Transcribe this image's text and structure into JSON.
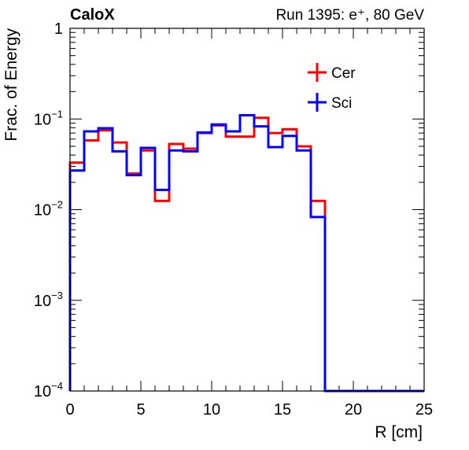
{
  "chart_data": {
    "type": "step",
    "title_left": "CaloX",
    "title_right": "Run 1395: e⁺, 80 GeV",
    "xlabel": "R [cm]",
    "ylabel": "Frac. of Energy",
    "xlim": [
      0,
      25
    ],
    "ylim": [
      0.0001,
      1
    ],
    "yscale": "log",
    "xticks": [
      0,
      5,
      10,
      15,
      20,
      25
    ],
    "ytick_labels": [
      {
        "value": 1,
        "base": "1",
        "exp": ""
      },
      {
        "value": 0.1,
        "base": "10",
        "exp": "−1"
      },
      {
        "value": 0.01,
        "base": "10",
        "exp": "−2"
      },
      {
        "value": 0.001,
        "base": "10",
        "exp": "−3"
      },
      {
        "value": 0.0001,
        "base": "10",
        "exp": "−4"
      }
    ],
    "bin_edges": [
      0,
      1,
      2,
      3,
      4,
      5,
      6,
      7,
      8,
      9,
      10,
      11,
      12,
      13,
      14,
      15,
      16,
      17,
      18,
      19,
      20,
      21,
      22,
      23,
      24,
      25
    ],
    "series": [
      {
        "name": "Cer",
        "color": "#ff0000",
        "values": [
          0.033,
          0.058,
          0.075,
          0.055,
          0.025,
          0.045,
          0.0125,
          0.053,
          0.047,
          0.07,
          0.085,
          0.064,
          0.064,
          0.103,
          0.07,
          0.077,
          0.05,
          0.0125,
          0,
          0,
          0,
          0,
          0,
          0,
          0
        ]
      },
      {
        "name": "Sci",
        "color": "#0000ff",
        "values": [
          0.027,
          0.073,
          0.079,
          0.044,
          0.024,
          0.048,
          0.0165,
          0.045,
          0.044,
          0.071,
          0.087,
          0.073,
          0.11,
          0.083,
          0.049,
          0.065,
          0.045,
          0.0083,
          0,
          0,
          0,
          0,
          0,
          0,
          0
        ]
      }
    ],
    "legend_position": "top-right"
  }
}
